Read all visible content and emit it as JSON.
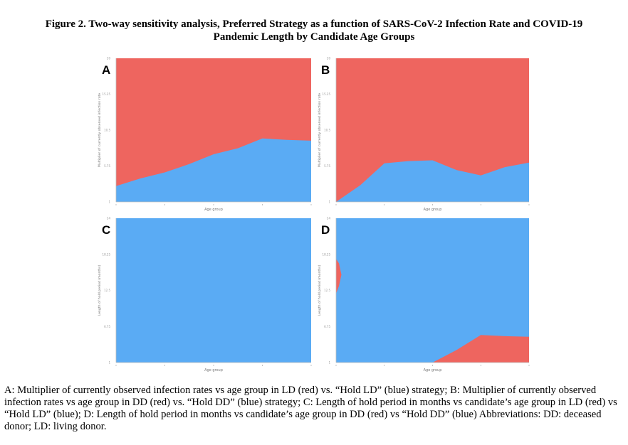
{
  "figure": {
    "title_line1": "Figure 2. Two-way sensitivity analysis, Preferred Strategy as a function of SARS-CoV-2 Infection Rate and COVID-19",
    "title_line2": "Pandemic Length by Candidate Age Groups",
    "caption": "A: Multiplier of currently observed infection rates vs age group in LD (red) vs. “Hold LD” (blue) strategy; B: Multiplier of currently observed infection rates vs age group in DD (red) vs. “Hold DD” (blue) strategy; C: Length of hold period in months vs candidate’s age group in LD (red) vs “Hold LD” (blue); D: Length of hold period in months vs candidate’s age group in DD (red) vs “Hold DD” (blue) Abbreviations: DD: deceased donor; LD: living donor."
  },
  "colors": {
    "red": "#ee655f",
    "blue": "#5aabf4",
    "axis": "#bbbbbb",
    "tick_text": "#999999"
  },
  "chart_data": [
    {
      "panel": "A",
      "type": "area",
      "xlabel": "Age group",
      "ylabel": "Multiplier of currently observed infection rate",
      "ylim": [
        1,
        20
      ],
      "yticks": [
        "1",
        "5.75",
        "10.5",
        "15.25",
        "20"
      ],
      "x": [
        0,
        1,
        2,
        3,
        4,
        5,
        6,
        7,
        8
      ],
      "boundary": [
        3.1,
        4.1,
        4.9,
        6.0,
        7.3,
        8.1,
        9.4,
        9.2,
        9.1
      ],
      "lower_region": "blue",
      "upper_region": "red",
      "red_inner": null
    },
    {
      "panel": "B",
      "type": "area",
      "xlabel": "Age group",
      "ylabel": "Multiplier of currently observed infection rate",
      "ylim": [
        1,
        20
      ],
      "yticks": [
        "1",
        "5.75",
        "10.5",
        "15.25",
        "20"
      ],
      "x": [
        0,
        1,
        2,
        3,
        4,
        5,
        6,
        7,
        8
      ],
      "boundary": [
        1.0,
        3.2,
        6.1,
        6.4,
        6.5,
        5.2,
        4.5,
        5.6,
        6.2
      ],
      "lower_region": "blue",
      "upper_region": "red",
      "red_inner": null
    },
    {
      "panel": "C",
      "type": "area",
      "xlabel": "Age group",
      "ylabel": "Length of hold period (months)",
      "ylim": [
        1,
        24
      ],
      "yticks": [
        "1",
        "6.75",
        "12.5",
        "18.25",
        "24"
      ],
      "x": [
        0,
        1,
        2,
        3,
        4,
        5,
        6,
        7,
        8
      ],
      "boundary": [
        1,
        1,
        1,
        1,
        1,
        1,
        1,
        1,
        1
      ],
      "lower_region": "red",
      "upper_region": "blue",
      "red_inner": null
    },
    {
      "panel": "D",
      "type": "area",
      "xlabel": "Age group",
      "ylabel": "Length of hold period (months)",
      "ylim": [
        1,
        24
      ],
      "yticks": [
        "1",
        "6.75",
        "12.5",
        "18.25",
        "24"
      ],
      "x": [
        0,
        1,
        2,
        3,
        4,
        5,
        6,
        7,
        8
      ],
      "boundary": [
        1,
        1,
        1,
        1,
        1.0,
        3.0,
        5.4,
        5.2,
        5.1
      ],
      "lower_region": "red",
      "upper_region": "blue",
      "red_inner": [
        [
          0,
          12.0
        ],
        [
          0.12,
          13.2
        ],
        [
          0.22,
          15.0
        ],
        [
          0.12,
          16.8
        ],
        [
          0,
          17.5
        ]
      ]
    }
  ]
}
